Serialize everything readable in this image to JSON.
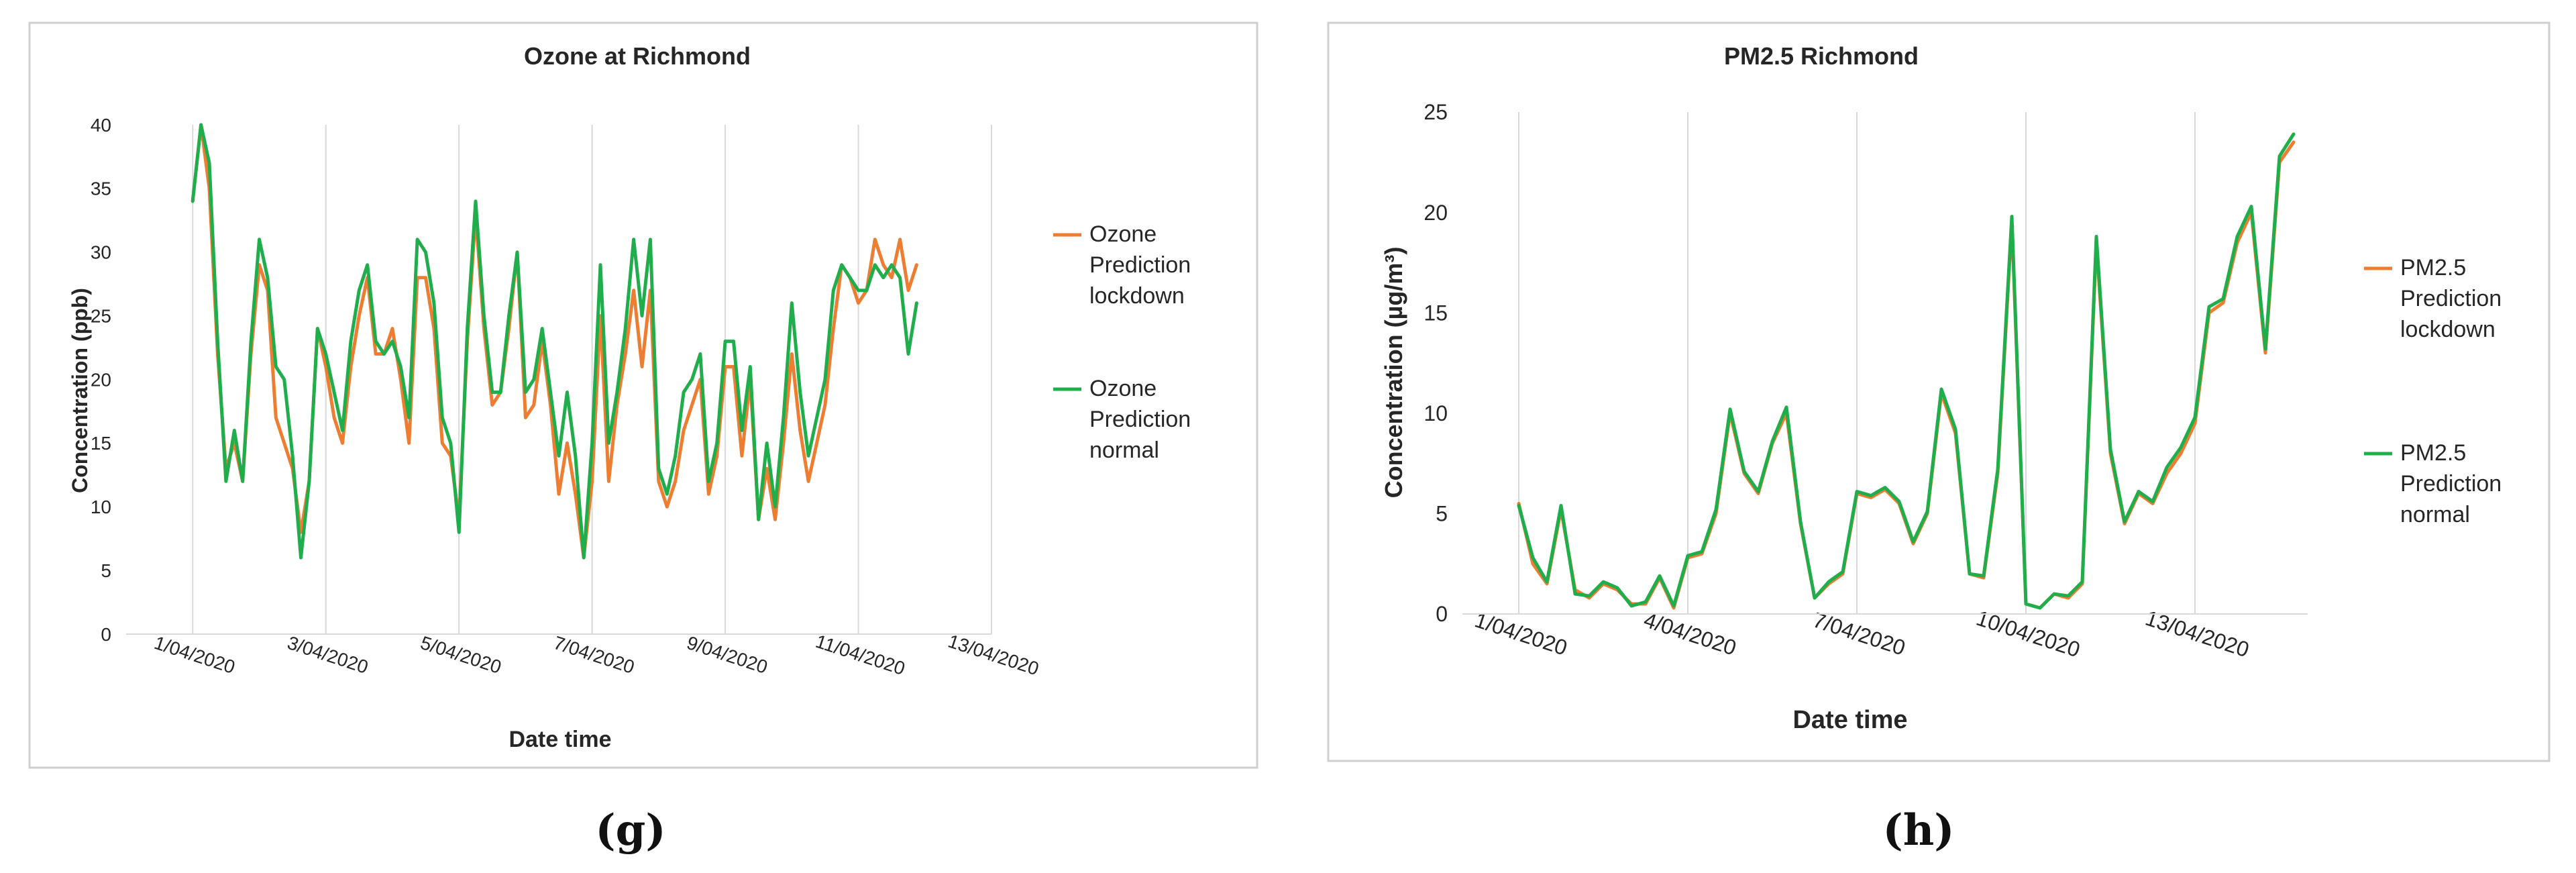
{
  "colors": {
    "lockdown": "#ED7D31",
    "normal": "#1FAE4B",
    "grid": "#D9D9D9",
    "frame": "#CFCFCF",
    "text": "#262626"
  },
  "panel_labels": [
    "(g)",
    "(h)"
  ],
  "chart_data": [
    {
      "type": "line",
      "title": "Ozone at Richmond",
      "xlabel": "Date time",
      "ylabel": "Concentration (ppb)",
      "ylim": [
        0,
        40
      ],
      "yticks": [
        0,
        5,
        10,
        15,
        20,
        25,
        30,
        35,
        40
      ],
      "xlim": [
        "2020-03-31",
        "2020-04-13"
      ],
      "xticks": [
        "1/04/2020",
        "3/04/2020",
        "5/04/2020",
        "7/04/2020",
        "9/04/2020",
        "11/04/2020",
        "13/04/2020"
      ],
      "grid": "vertical",
      "legend": "right",
      "series": [
        {
          "name": "Ozone Prediction lockdown",
          "color": "#ED7D31",
          "x": [
            "2020-04-01 00:00",
            "2020-04-01 03:00",
            "2020-04-01 06:00",
            "2020-04-01 09:00",
            "2020-04-01 12:00",
            "2020-04-01 15:00",
            "2020-04-01 18:00",
            "2020-04-01 21:00",
            "2020-04-02 00:00",
            "2020-04-02 03:00",
            "2020-04-02 06:00",
            "2020-04-02 09:00",
            "2020-04-02 12:00",
            "2020-04-02 15:00",
            "2020-04-02 18:00",
            "2020-04-02 21:00",
            "2020-04-03 00:00",
            "2020-04-03 03:00",
            "2020-04-03 06:00",
            "2020-04-03 09:00",
            "2020-04-03 12:00",
            "2020-04-03 15:00",
            "2020-04-03 18:00",
            "2020-04-03 21:00",
            "2020-04-04 00:00",
            "2020-04-04 03:00",
            "2020-04-04 06:00",
            "2020-04-04 09:00",
            "2020-04-04 12:00",
            "2020-04-04 15:00",
            "2020-04-04 18:00",
            "2020-04-04 21:00",
            "2020-04-05 00:00",
            "2020-04-05 03:00",
            "2020-04-05 06:00",
            "2020-04-05 09:00",
            "2020-04-05 12:00",
            "2020-04-05 15:00",
            "2020-04-05 18:00",
            "2020-04-05 21:00",
            "2020-04-06 00:00",
            "2020-04-06 03:00",
            "2020-04-06 06:00",
            "2020-04-06 09:00",
            "2020-04-06 12:00",
            "2020-04-06 15:00",
            "2020-04-06 18:00",
            "2020-04-06 21:00",
            "2020-04-07 00:00",
            "2020-04-07 03:00",
            "2020-04-07 06:00",
            "2020-04-07 09:00",
            "2020-04-07 12:00",
            "2020-04-07 15:00",
            "2020-04-07 18:00",
            "2020-04-07 21:00",
            "2020-04-08 00:00",
            "2020-04-08 03:00",
            "2020-04-08 06:00",
            "2020-04-08 09:00",
            "2020-04-08 12:00",
            "2020-04-08 15:00",
            "2020-04-08 18:00",
            "2020-04-08 21:00",
            "2020-04-09 00:00",
            "2020-04-09 03:00",
            "2020-04-09 06:00",
            "2020-04-09 09:00",
            "2020-04-09 12:00",
            "2020-04-09 15:00",
            "2020-04-09 18:00",
            "2020-04-09 21:00",
            "2020-04-10 00:00",
            "2020-04-10 03:00",
            "2020-04-10 06:00",
            "2020-04-10 09:00",
            "2020-04-10 12:00",
            "2020-04-10 15:00",
            "2020-04-10 18:00",
            "2020-04-10 21:00",
            "2020-04-11 00:00",
            "2020-04-11 03:00",
            "2020-04-11 06:00",
            "2020-04-11 09:00",
            "2020-04-11 12:00",
            "2020-04-11 15:00",
            "2020-04-11 18:00",
            "2020-04-11 21:00"
          ],
          "values": [
            34,
            40,
            35,
            22,
            13,
            15,
            12,
            22,
            29,
            27,
            17,
            15,
            13,
            8,
            12,
            24,
            21,
            17,
            15,
            21,
            25,
            28,
            22,
            22,
            24,
            20,
            15,
            28,
            28,
            24,
            15,
            14,
            9,
            23,
            33,
            24,
            18,
            19,
            24,
            30,
            17,
            18,
            23,
            18,
            11,
            15,
            11,
            6,
            12,
            25,
            12,
            18,
            22,
            27,
            21,
            27,
            12,
            10,
            12,
            16,
            18,
            20,
            11,
            14,
            21,
            21,
            14,
            20,
            9,
            13,
            9,
            15,
            22,
            16,
            12,
            15,
            18,
            24,
            29,
            28,
            26,
            27,
            31,
            29,
            28,
            31,
            27,
            29
          ]
        },
        {
          "name": "Ozone Prediction normal",
          "color": "#1FAE4B",
          "x": [
            "2020-04-01 00:00",
            "2020-04-01 03:00",
            "2020-04-01 06:00",
            "2020-04-01 09:00",
            "2020-04-01 12:00",
            "2020-04-01 15:00",
            "2020-04-01 18:00",
            "2020-04-01 21:00",
            "2020-04-02 00:00",
            "2020-04-02 03:00",
            "2020-04-02 06:00",
            "2020-04-02 09:00",
            "2020-04-02 12:00",
            "2020-04-02 15:00",
            "2020-04-02 18:00",
            "2020-04-02 21:00",
            "2020-04-03 00:00",
            "2020-04-03 03:00",
            "2020-04-03 06:00",
            "2020-04-03 09:00",
            "2020-04-03 12:00",
            "2020-04-03 15:00",
            "2020-04-03 18:00",
            "2020-04-03 21:00",
            "2020-04-04 00:00",
            "2020-04-04 03:00",
            "2020-04-04 06:00",
            "2020-04-04 09:00",
            "2020-04-04 12:00",
            "2020-04-04 15:00",
            "2020-04-04 18:00",
            "2020-04-04 21:00",
            "2020-04-05 00:00",
            "2020-04-05 03:00",
            "2020-04-05 06:00",
            "2020-04-05 09:00",
            "2020-04-05 12:00",
            "2020-04-05 15:00",
            "2020-04-05 18:00",
            "2020-04-05 21:00",
            "2020-04-06 00:00",
            "2020-04-06 03:00",
            "2020-04-06 06:00",
            "2020-04-06 09:00",
            "2020-04-06 12:00",
            "2020-04-06 15:00",
            "2020-04-06 18:00",
            "2020-04-06 21:00",
            "2020-04-07 00:00",
            "2020-04-07 03:00",
            "2020-04-07 06:00",
            "2020-04-07 09:00",
            "2020-04-07 12:00",
            "2020-04-07 15:00",
            "2020-04-07 18:00",
            "2020-04-07 21:00",
            "2020-04-08 00:00",
            "2020-04-08 03:00",
            "2020-04-08 06:00",
            "2020-04-08 09:00",
            "2020-04-08 12:00",
            "2020-04-08 15:00",
            "2020-04-08 18:00",
            "2020-04-08 21:00",
            "2020-04-09 00:00",
            "2020-04-09 03:00",
            "2020-04-09 06:00",
            "2020-04-09 09:00",
            "2020-04-09 12:00",
            "2020-04-09 15:00",
            "2020-04-09 18:00",
            "2020-04-09 21:00",
            "2020-04-10 00:00",
            "2020-04-10 03:00",
            "2020-04-10 06:00",
            "2020-04-10 09:00",
            "2020-04-10 12:00",
            "2020-04-10 15:00",
            "2020-04-10 18:00",
            "2020-04-10 21:00",
            "2020-04-11 00:00",
            "2020-04-11 03:00",
            "2020-04-11 06:00",
            "2020-04-11 09:00",
            "2020-04-11 12:00",
            "2020-04-11 15:00",
            "2020-04-11 18:00",
            "2020-04-11 21:00"
          ],
          "values": [
            34,
            40,
            37,
            23,
            12,
            16,
            12,
            23,
            31,
            28,
            21,
            20,
            14,
            6,
            12,
            24,
            22,
            19,
            16,
            23,
            27,
            29,
            23,
            22,
            23,
            21,
            17,
            31,
            30,
            26,
            17,
            15,
            8,
            24,
            34,
            25,
            19,
            19,
            25,
            30,
            19,
            20,
            24,
            19,
            14,
            19,
            14,
            6,
            15,
            29,
            15,
            19,
            24,
            31,
            25,
            31,
            13,
            11,
            14,
            19,
            20,
            22,
            12,
            15,
            23,
            23,
            16,
            21,
            9,
            15,
            10,
            17,
            26,
            19,
            14,
            17,
            20,
            27,
            29,
            28,
            27,
            27,
            29,
            28,
            29,
            28,
            22,
            26
          ]
        }
      ]
    },
    {
      "type": "line",
      "title": "PM2.5 Richmond",
      "xlabel": "Date time",
      "ylabel": "Concentration (µg/m³)",
      "ylim": [
        0,
        25
      ],
      "yticks": [
        0,
        5,
        10,
        15,
        20,
        25
      ],
      "xlim": [
        "2020-03-31",
        "2020-04-15"
      ],
      "xticks": [
        "1/04/2020",
        "4/04/2020",
        "7/04/2020",
        "10/04/2020",
        "13/04/2020"
      ],
      "grid": "vertical",
      "legend": "right",
      "series": [
        {
          "name": "PM2.5 Prediction lockdown",
          "color": "#ED7D31",
          "x": [
            "2020-04-01 00:00",
            "2020-04-01 06:00",
            "2020-04-01 12:00",
            "2020-04-01 18:00",
            "2020-04-02 00:00",
            "2020-04-02 06:00",
            "2020-04-02 12:00",
            "2020-04-02 18:00",
            "2020-04-03 00:00",
            "2020-04-03 06:00",
            "2020-04-03 12:00",
            "2020-04-03 18:00",
            "2020-04-04 00:00",
            "2020-04-04 06:00",
            "2020-04-04 12:00",
            "2020-04-04 18:00",
            "2020-04-05 00:00",
            "2020-04-05 06:00",
            "2020-04-05 12:00",
            "2020-04-05 18:00",
            "2020-04-06 00:00",
            "2020-04-06 06:00",
            "2020-04-06 12:00",
            "2020-04-06 18:00",
            "2020-04-07 00:00",
            "2020-04-07 06:00",
            "2020-04-07 12:00",
            "2020-04-07 18:00",
            "2020-04-08 00:00",
            "2020-04-08 06:00",
            "2020-04-08 12:00",
            "2020-04-08 18:00",
            "2020-04-09 00:00",
            "2020-04-09 06:00",
            "2020-04-09 12:00",
            "2020-04-09 18:00",
            "2020-04-10 00:00",
            "2020-04-10 06:00",
            "2020-04-10 12:00",
            "2020-04-10 18:00",
            "2020-04-11 00:00",
            "2020-04-11 06:00",
            "2020-04-11 12:00",
            "2020-04-11 18:00",
            "2020-04-12 00:00",
            "2020-04-12 06:00",
            "2020-04-12 12:00",
            "2020-04-12 18:00",
            "2020-04-13 00:00",
            "2020-04-13 06:00",
            "2020-04-13 12:00",
            "2020-04-13 18:00",
            "2020-04-14 00:00",
            "2020-04-14 06:00",
            "2020-04-14 12:00",
            "2020-04-14 18:00"
          ],
          "values": [
            5.5,
            2.5,
            1.5,
            5.2,
            1.2,
            0.8,
            1.5,
            1.2,
            0.5,
            0.5,
            1.8,
            0.3,
            2.8,
            3.0,
            5.0,
            10.0,
            7.0,
            6.0,
            8.5,
            10.0,
            4.5,
            0.8,
            1.5,
            2.0,
            6.0,
            5.8,
            6.2,
            5.5,
            3.5,
            5.0,
            11.0,
            9.0,
            2.0,
            1.8,
            7.0,
            19.5,
            0.5,
            0.3,
            1.0,
            0.8,
            1.5,
            18.5,
            8.0,
            4.5,
            6.0,
            5.5,
            7.0,
            8.0,
            9.5,
            15.0,
            15.5,
            18.5,
            20.0,
            13.0,
            22.5,
            23.5
          ]
        },
        {
          "name": "PM2.5 Prediction normal",
          "color": "#1FAE4B",
          "x": [
            "2020-04-01 00:00",
            "2020-04-01 06:00",
            "2020-04-01 12:00",
            "2020-04-01 18:00",
            "2020-04-02 00:00",
            "2020-04-02 06:00",
            "2020-04-02 12:00",
            "2020-04-02 18:00",
            "2020-04-03 00:00",
            "2020-04-03 06:00",
            "2020-04-03 12:00",
            "2020-04-03 18:00",
            "2020-04-04 00:00",
            "2020-04-04 06:00",
            "2020-04-04 12:00",
            "2020-04-04 18:00",
            "2020-04-05 00:00",
            "2020-04-05 06:00",
            "2020-04-05 12:00",
            "2020-04-05 18:00",
            "2020-04-06 00:00",
            "2020-04-06 06:00",
            "2020-04-06 12:00",
            "2020-04-06 18:00",
            "2020-04-07 00:00",
            "2020-04-07 06:00",
            "2020-04-07 12:00",
            "2020-04-07 18:00",
            "2020-04-08 00:00",
            "2020-04-08 06:00",
            "2020-04-08 12:00",
            "2020-04-08 18:00",
            "2020-04-09 00:00",
            "2020-04-09 06:00",
            "2020-04-09 12:00",
            "2020-04-09 18:00",
            "2020-04-10 00:00",
            "2020-04-10 06:00",
            "2020-04-10 12:00",
            "2020-04-10 18:00",
            "2020-04-11 00:00",
            "2020-04-11 06:00",
            "2020-04-11 12:00",
            "2020-04-11 18:00",
            "2020-04-12 00:00",
            "2020-04-12 06:00",
            "2020-04-12 12:00",
            "2020-04-12 18:00",
            "2020-04-13 00:00",
            "2020-04-13 06:00",
            "2020-04-13 12:00",
            "2020-04-13 18:00",
            "2020-04-14 00:00",
            "2020-04-14 06:00",
            "2020-04-14 12:00",
            "2020-04-14 18:00"
          ],
          "values": [
            5.4,
            2.8,
            1.6,
            5.4,
            1.0,
            0.9,
            1.6,
            1.3,
            0.4,
            0.6,
            1.9,
            0.4,
            2.9,
            3.1,
            5.2,
            10.2,
            7.1,
            6.1,
            8.6,
            10.3,
            4.6,
            0.8,
            1.6,
            2.1,
            6.1,
            5.9,
            6.3,
            5.6,
            3.6,
            5.1,
            11.2,
            9.2,
            2.0,
            1.9,
            7.2,
            19.8,
            0.5,
            0.3,
            1.0,
            0.9,
            1.6,
            18.8,
            8.2,
            4.6,
            6.1,
            5.6,
            7.3,
            8.3,
            9.8,
            15.3,
            15.7,
            18.8,
            20.3,
            13.2,
            22.8,
            23.9
          ]
        }
      ]
    }
  ]
}
